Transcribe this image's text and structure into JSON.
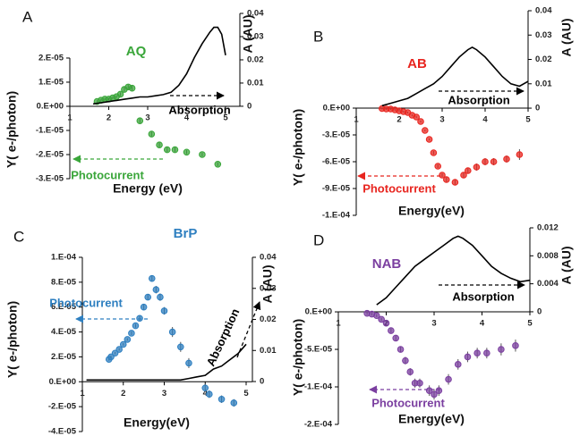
{
  "chart_data": [
    {
      "type": "scatter",
      "panel_label": "A",
      "title": "AQ",
      "x_label": "Energy (eV)",
      "y_label": "Y( e-/photon)",
      "y2_label": "A (AU)",
      "xlim": [
        1,
        5
      ],
      "xticks": [
        1,
        2,
        3,
        4,
        5
      ],
      "ylim": [
        -3e-05,
        3.85e-05
      ],
      "yticks": [
        {
          "value": 2e-05,
          "label": "2.E-05"
        },
        {
          "value": 1e-05,
          "label": "1.E-05"
        },
        {
          "value": 0,
          "label": "0.E+00"
        },
        {
          "value": -1e-05,
          "label": "-1.E-05"
        },
        {
          "value": -2e-05,
          "label": "-2.E-05"
        },
        {
          "value": -3e-05,
          "label": "-3.E-05"
        }
      ],
      "y2lim": [
        -0.0312,
        0.04
      ],
      "y2ticks": [
        0,
        0.01,
        0.02,
        0.03,
        0.04
      ],
      "series": [
        {
          "name": "Photocurrent",
          "color": "#3aa63a",
          "x": [
            1.7,
            1.8,
            1.9,
            2.0,
            2.1,
            2.2,
            2.3,
            2.4,
            2.5,
            2.6,
            2.8,
            3.1,
            3.3,
            3.5,
            3.7,
            4.0,
            4.4,
            4.8
          ],
          "values": [
            2e-06,
            2.5e-06,
            3e-06,
            3e-06,
            3.5e-06,
            4e-06,
            5e-06,
            7e-06,
            8e-06,
            7.5e-06,
            -6e-06,
            -1.15e-05,
            -1.6e-05,
            -1.8e-05,
            -1.8e-05,
            -1.9e-05,
            -2e-05,
            -2.4e-05
          ],
          "errors": [
            5e-07,
            5e-07,
            5e-07,
            5e-07,
            5e-07,
            5e-07,
            8e-07,
            1e-06,
            1e-06,
            1e-06,
            1e-06,
            1e-06,
            1.2e-06,
            1e-06,
            1e-06,
            8e-07,
            8e-07,
            8e-07
          ]
        },
        {
          "name": "Absorption",
          "color": "#000000",
          "axis": "y2",
          "x": [
            1.6,
            1.8,
            2.0,
            2.2,
            2.4,
            2.6,
            2.8,
            3.0,
            3.2,
            3.4,
            3.6,
            3.8,
            4.0,
            4.2,
            4.4,
            4.6,
            4.7,
            4.8,
            4.9,
            5.0
          ],
          "values": [
            0.001,
            0.0015,
            0.002,
            0.0025,
            0.003,
            0.0035,
            0.004,
            0.004,
            0.0045,
            0.005,
            0.006,
            0.009,
            0.014,
            0.021,
            0.027,
            0.032,
            0.034,
            0.034,
            0.031,
            0.022
          ]
        }
      ]
    },
    {
      "type": "scatter",
      "panel_label": "B",
      "title": "AB",
      "x_label": "Energy(eV)",
      "y_label": "Y( e-/photon)",
      "y2_label": "A (AU)",
      "xlim": [
        1,
        5
      ],
      "xticks": [
        1,
        2,
        3,
        4,
        5
      ],
      "ylim": [
        -0.00012,
        0.000109
      ],
      "yticks": [
        {
          "value": 0,
          "label": "0.E+00"
        },
        {
          "value": -3e-05,
          "label": "-3.E-05"
        },
        {
          "value": -6e-05,
          "label": "-6.E-05"
        },
        {
          "value": -9e-05,
          "label": "-9.E-05"
        },
        {
          "value": -0.00012,
          "label": "-1.E-04"
        }
      ],
      "y2lim": [
        -0.044,
        0.04
      ],
      "y2ticks": [
        0,
        0.01,
        0.02,
        0.03,
        0.04
      ],
      "series": [
        {
          "name": "Photocurrent",
          "color": "#e8251f",
          "x": [
            1.6,
            1.7,
            1.8,
            1.9,
            2.0,
            2.1,
            2.2,
            2.3,
            2.4,
            2.5,
            2.6,
            2.7,
            2.8,
            2.9,
            3.0,
            3.1,
            3.3,
            3.5,
            3.6,
            3.8,
            4.0,
            4.2,
            4.5,
            4.8
          ],
          "values": [
            -5e-07,
            -1e-06,
            -1e-06,
            -2e-06,
            -3e-06,
            -4e-06,
            -5e-06,
            -8e-06,
            -1e-05,
            -1.5e-05,
            -2.5e-05,
            -3.5e-05,
            -5e-05,
            -6.5e-05,
            -7.5e-05,
            -8e-05,
            -8.3e-05,
            -7.5e-05,
            -7e-05,
            -6.6e-05,
            -6e-05,
            -6e-05,
            -5.7e-05,
            -5.2e-05
          ],
          "errors": [
            1e-06,
            1e-06,
            1e-06,
            1e-06,
            1e-06,
            1e-06,
            1e-06,
            1e-06,
            1e-06,
            1e-06,
            1e-06,
            1e-06,
            2e-06,
            2e-06,
            2e-06,
            3e-06,
            3e-06,
            3e-06,
            3e-06,
            4e-06,
            4e-06,
            4e-06,
            4e-06,
            6e-06
          ]
        },
        {
          "name": "Absorption",
          "color": "#000000",
          "axis": "y2",
          "x": [
            1.6,
            1.8,
            2.0,
            2.2,
            2.4,
            2.6,
            2.8,
            3.0,
            3.2,
            3.4,
            3.6,
            3.7,
            3.8,
            4.0,
            4.2,
            4.4,
            4.6,
            4.8,
            5.0
          ],
          "values": [
            0.001,
            0.002,
            0.003,
            0.004,
            0.006,
            0.008,
            0.01,
            0.013,
            0.017,
            0.021,
            0.024,
            0.025,
            0.024,
            0.021,
            0.017,
            0.013,
            0.01,
            0.009,
            0.011
          ]
        }
      ]
    },
    {
      "type": "scatter",
      "panel_label": "C",
      "title": "BrP",
      "x_label": "Energy(eV)",
      "y_label": "Y( e-/photon)",
      "y2_label": "A (AU)",
      "xlim": [
        1,
        5
      ],
      "xticks": [
        1,
        2,
        3,
        4,
        5
      ],
      "ylim": [
        -4e-05,
        0.0001
      ],
      "yticks": [
        {
          "value": 0.0001,
          "label": "1.E-04"
        },
        {
          "value": 8e-05,
          "label": "8.E-05"
        },
        {
          "value": 6e-05,
          "label": "6.E-05"
        },
        {
          "value": 4e-05,
          "label": "4.E-05"
        },
        {
          "value": 2e-05,
          "label": "2.E-05"
        },
        {
          "value": 0,
          "label": "0.E+00"
        },
        {
          "value": -2e-05,
          "label": "-2.E-05"
        },
        {
          "value": -4e-05,
          "label": "-4.E-05"
        }
      ],
      "y2lim": [
        -0.0161,
        0.04
      ],
      "y2ticks": [
        0,
        0.01,
        0.02,
        0.03,
        0.04
      ],
      "series": [
        {
          "name": "Photocurrent",
          "color": "#2e7fc0",
          "x": [
            1.65,
            1.7,
            1.8,
            1.9,
            2.0,
            2.1,
            2.2,
            2.3,
            2.4,
            2.5,
            2.6,
            2.7,
            2.8,
            2.9,
            3.0,
            3.2,
            3.4,
            3.6,
            4.0,
            4.1,
            4.4,
            4.7
          ],
          "values": [
            1.8e-05,
            2e-05,
            2.3e-05,
            2.6e-05,
            3e-05,
            3.4e-05,
            3.9e-05,
            4.5e-05,
            5.1e-05,
            6e-05,
            6.8e-05,
            8.3e-05,
            7.4e-05,
            6.8e-05,
            5.7e-05,
            4e-05,
            2.8e-05,
            1.5e-05,
            -5e-06,
            -1e-05,
            -1.4e-05,
            -1.7e-05
          ],
          "errors": [
            1e-06,
            1e-06,
            1e-06,
            1e-06,
            1e-06,
            1e-06,
            1.5e-06,
            1.5e-06,
            2e-06,
            2e-06,
            2.5e-06,
            2.5e-06,
            3e-06,
            3e-06,
            3e-06,
            4e-06,
            4e-06,
            4e-06,
            3e-06,
            3e-06,
            3e-06,
            3e-06
          ]
        },
        {
          "name": "Absorption",
          "color": "#000000",
          "axis": "y2",
          "x": [
            1.1,
            1.5,
            2.0,
            2.5,
            3.0,
            3.4,
            3.6,
            3.8,
            4.0,
            4.2,
            4.4,
            4.6,
            4.8,
            5.0
          ],
          "values": [
            0.0005,
            0.0005,
            0.0005,
            0.0005,
            0.0005,
            0.0005,
            0.001,
            0.0015,
            0.002,
            0.004,
            0.005,
            0.007,
            0.009,
            0.012
          ]
        }
      ]
    },
    {
      "type": "scatter",
      "panel_label": "D",
      "title": "NAB",
      "x_label": "Energy(eV)",
      "y_label": "Y( e-/photon)",
      "y2_label": "A (AU)",
      "xlim": [
        1,
        5
      ],
      "xticks": [
        1,
        2,
        3,
        4,
        5
      ],
      "ylim": [
        -0.00015,
        0.000112
      ],
      "yticks": [
        {
          "value": 0,
          "label": "0.E+00"
        },
        {
          "value": -5e-05,
          "label": "-5.E-05"
        },
        {
          "value": -0.0001,
          "label": "-1.E-04"
        },
        {
          "value": -0.00015,
          "label": "-2.E-04"
        }
      ],
      "y2lim": [
        -0.0161,
        0.012
      ],
      "y2ticks": [
        0,
        0.004,
        0.008,
        0.012
      ],
      "series": [
        {
          "name": "Photocurrent",
          "color": "#7b3fa0",
          "x": [
            1.6,
            1.7,
            1.8,
            1.9,
            2.0,
            2.1,
            2.2,
            2.3,
            2.4,
            2.5,
            2.6,
            2.7,
            2.9,
            3.0,
            3.1,
            3.3,
            3.5,
            3.7,
            3.9,
            4.1,
            4.4,
            4.7
          ],
          "values": [
            -2e-06,
            -3e-06,
            -5e-06,
            -1e-05,
            -1.5e-05,
            -2.5e-05,
            -3.5e-05,
            -5e-05,
            -6.5e-05,
            -8e-05,
            -9.5e-05,
            -9.5e-05,
            -0.000105,
            -0.00011,
            -0.000105,
            -9e-05,
            -7e-05,
            -6e-05,
            -5.5e-05,
            -5.5e-05,
            -5e-05,
            -4.5e-05
          ],
          "errors": [
            2e-06,
            2e-06,
            2e-06,
            2e-06,
            3e-06,
            3e-06,
            4e-06,
            4e-06,
            5e-06,
            5e-06,
            6e-06,
            6e-06,
            7e-06,
            7e-06,
            7e-06,
            7e-06,
            7e-06,
            7e-06,
            7e-06,
            7e-06,
            8e-06,
            8e-06
          ]
        },
        {
          "name": "Absorption",
          "color": "#000000",
          "axis": "y2",
          "x": [
            1.8,
            2.0,
            2.2,
            2.4,
            2.6,
            2.8,
            3.0,
            3.2,
            3.4,
            3.5,
            3.6,
            3.8,
            4.0,
            4.2,
            4.4,
            4.6,
            4.8,
            5.0
          ],
          "values": [
            0.001,
            0.002,
            0.0035,
            0.005,
            0.0065,
            0.0075,
            0.0085,
            0.0095,
            0.0105,
            0.0108,
            0.0105,
            0.0095,
            0.008,
            0.0065,
            0.0055,
            0.0048,
            0.0043,
            0.0045
          ]
        }
      ]
    }
  ]
}
